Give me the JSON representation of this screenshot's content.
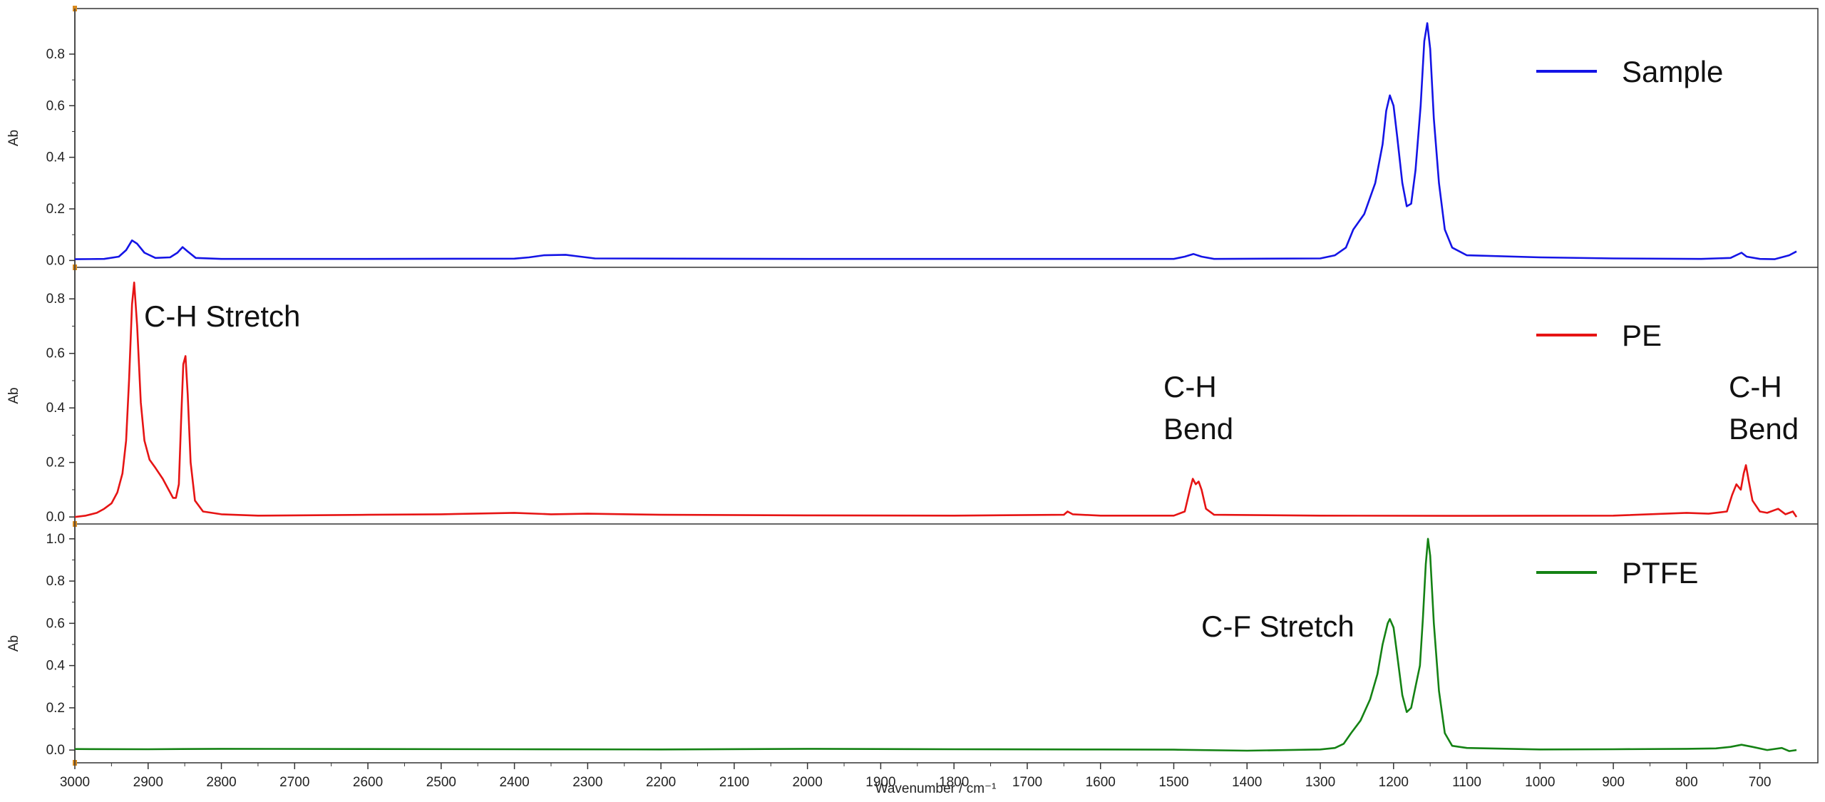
{
  "chart_data": {
    "type": "line",
    "xlabel": "Wavenumber / cm⁻¹",
    "xlim": [
      3000,
      650
    ],
    "x_ticks": [
      3000,
      2900,
      2800,
      2700,
      2600,
      2500,
      2400,
      2300,
      2200,
      2100,
      2000,
      1900,
      1800,
      1700,
      1600,
      1500,
      1400,
      1300,
      1200,
      1100,
      1000,
      900,
      800,
      700
    ],
    "grid": false,
    "legend_position": "right",
    "panels": [
      {
        "id": "sample",
        "ylabel": "Ab",
        "ylim": [
          -0.01,
          0.96
        ],
        "y_ticks": [
          0.0,
          0.2,
          0.4,
          0.6,
          0.8
        ],
        "series": [
          {
            "name": "Sample",
            "color": "#1414e6",
            "points": [
              [
                3000,
                0.005
              ],
              [
                2960,
                0.006
              ],
              [
                2940,
                0.015
              ],
              [
                2930,
                0.04
              ],
              [
                2922,
                0.078
              ],
              [
                2915,
                0.065
              ],
              [
                2905,
                0.03
              ],
              [
                2890,
                0.01
              ],
              [
                2870,
                0.012
              ],
              [
                2860,
                0.03
              ],
              [
                2853,
                0.052
              ],
              [
                2846,
                0.035
              ],
              [
                2835,
                0.01
              ],
              [
                2800,
                0.006
              ],
              [
                2600,
                0.006
              ],
              [
                2400,
                0.007
              ],
              [
                2380,
                0.012
              ],
              [
                2360,
                0.02
              ],
              [
                2330,
                0.022
              ],
              [
                2310,
                0.015
              ],
              [
                2290,
                0.008
              ],
              [
                2000,
                0.006
              ],
              [
                1700,
                0.006
              ],
              [
                1500,
                0.006
              ],
              [
                1485,
                0.015
              ],
              [
                1473,
                0.025
              ],
              [
                1462,
                0.015
              ],
              [
                1445,
                0.006
              ],
              [
                1300,
                0.008
              ],
              [
                1280,
                0.02
              ],
              [
                1265,
                0.05
              ],
              [
                1255,
                0.12
              ],
              [
                1240,
                0.18
              ],
              [
                1225,
                0.3
              ],
              [
                1215,
                0.45
              ],
              [
                1210,
                0.58
              ],
              [
                1205,
                0.64
              ],
              [
                1200,
                0.6
              ],
              [
                1195,
                0.48
              ],
              [
                1188,
                0.3
              ],
              [
                1182,
                0.21
              ],
              [
                1176,
                0.22
              ],
              [
                1170,
                0.35
              ],
              [
                1163,
                0.6
              ],
              [
                1158,
                0.85
              ],
              [
                1154,
                0.92
              ],
              [
                1150,
                0.82
              ],
              [
                1145,
                0.55
              ],
              [
                1138,
                0.3
              ],
              [
                1130,
                0.12
              ],
              [
                1120,
                0.05
              ],
              [
                1100,
                0.02
              ],
              [
                1000,
                0.012
              ],
              [
                900,
                0.008
              ],
              [
                780,
                0.006
              ],
              [
                740,
                0.01
              ],
              [
                725,
                0.03
              ],
              [
                718,
                0.015
              ],
              [
                700,
                0.006
              ],
              [
                680,
                0.005
              ],
              [
                660,
                0.02
              ],
              [
                650,
                0.035
              ]
            ]
          }
        ]
      },
      {
        "id": "pe",
        "ylabel": "Ab",
        "ylim": [
          -0.01,
          0.9
        ],
        "y_ticks": [
          0.0,
          0.2,
          0.4,
          0.6,
          0.8
        ],
        "series": [
          {
            "name": "PE",
            "color": "#e61414",
            "points": [
              [
                3000,
                0.0
              ],
              [
                2985,
                0.005
              ],
              [
                2970,
                0.015
              ],
              [
                2960,
                0.03
              ],
              [
                2950,
                0.05
              ],
              [
                2942,
                0.09
              ],
              [
                2935,
                0.16
              ],
              [
                2930,
                0.28
              ],
              [
                2926,
                0.5
              ],
              [
                2922,
                0.78
              ],
              [
                2919,
                0.86
              ],
              [
                2915,
                0.7
              ],
              [
                2910,
                0.42
              ],
              [
                2905,
                0.28
              ],
              [
                2898,
                0.21
              ],
              [
                2890,
                0.18
              ],
              [
                2880,
                0.14
              ],
              [
                2872,
                0.1
              ],
              [
                2866,
                0.07
              ],
              [
                2862,
                0.07
              ],
              [
                2858,
                0.12
              ],
              [
                2855,
                0.35
              ],
              [
                2852,
                0.56
              ],
              [
                2849,
                0.59
              ],
              [
                2846,
                0.45
              ],
              [
                2842,
                0.2
              ],
              [
                2836,
                0.06
              ],
              [
                2825,
                0.02
              ],
              [
                2800,
                0.01
              ],
              [
                2750,
                0.005
              ],
              [
                2600,
                0.008
              ],
              [
                2500,
                0.01
              ],
              [
                2400,
                0.015
              ],
              [
                2350,
                0.01
              ],
              [
                2300,
                0.012
              ],
              [
                2200,
                0.008
              ],
              [
                2000,
                0.006
              ],
              [
                1800,
                0.005
              ],
              [
                1650,
                0.008
              ],
              [
                1645,
                0.02
              ],
              [
                1638,
                0.01
              ],
              [
                1600,
                0.005
              ],
              [
                1500,
                0.005
              ],
              [
                1485,
                0.02
              ],
              [
                1478,
                0.1
              ],
              [
                1474,
                0.14
              ],
              [
                1470,
                0.12
              ],
              [
                1466,
                0.13
              ],
              [
                1462,
                0.1
              ],
              [
                1456,
                0.03
              ],
              [
                1445,
                0.008
              ],
              [
                1300,
                0.005
              ],
              [
                1100,
                0.004
              ],
              [
                900,
                0.005
              ],
              [
                800,
                0.015
              ],
              [
                770,
                0.012
              ],
              [
                745,
                0.02
              ],
              [
                738,
                0.08
              ],
              [
                732,
                0.12
              ],
              [
                726,
                0.1
              ],
              [
                722,
                0.16
              ],
              [
                719,
                0.19
              ],
              [
                715,
                0.13
              ],
              [
                710,
                0.06
              ],
              [
                700,
                0.02
              ],
              [
                690,
                0.015
              ],
              [
                675,
                0.03
              ],
              [
                665,
                0.01
              ],
              [
                655,
                0.02
              ],
              [
                650,
                0.0
              ]
            ]
          }
        ]
      },
      {
        "id": "ptfe",
        "ylabel": "Ab",
        "ylim": [
          -0.04,
          1.05
        ],
        "y_ticks": [
          0.0,
          0.2,
          0.4,
          0.6,
          0.8,
          1.0
        ],
        "series": [
          {
            "name": "PTFE",
            "color": "#148214",
            "points": [
              [
                3000,
                0.005
              ],
              [
                2900,
                0.004
              ],
              [
                2800,
                0.006
              ],
              [
                2600,
                0.005
              ],
              [
                2400,
                0.004
              ],
              [
                2200,
                0.003
              ],
              [
                2000,
                0.006
              ],
              [
                1800,
                0.004
              ],
              [
                1600,
                0.003
              ],
              [
                1500,
                0.002
              ],
              [
                1400,
                -0.003
              ],
              [
                1300,
                0.003
              ],
              [
                1280,
                0.01
              ],
              [
                1268,
                0.03
              ],
              [
                1258,
                0.08
              ],
              [
                1245,
                0.14
              ],
              [
                1232,
                0.24
              ],
              [
                1222,
                0.36
              ],
              [
                1215,
                0.5
              ],
              [
                1208,
                0.6
              ],
              [
                1205,
                0.62
              ],
              [
                1200,
                0.58
              ],
              [
                1195,
                0.45
              ],
              [
                1188,
                0.26
              ],
              [
                1182,
                0.18
              ],
              [
                1176,
                0.2
              ],
              [
                1170,
                0.3
              ],
              [
                1164,
                0.4
              ],
              [
                1160,
                0.62
              ],
              [
                1156,
                0.88
              ],
              [
                1153,
                1.0
              ],
              [
                1150,
                0.92
              ],
              [
                1145,
                0.6
              ],
              [
                1138,
                0.28
              ],
              [
                1130,
                0.08
              ],
              [
                1120,
                0.02
              ],
              [
                1100,
                0.01
              ],
              [
                1000,
                0.003
              ],
              [
                900,
                0.004
              ],
              [
                800,
                0.006
              ],
              [
                760,
                0.008
              ],
              [
                740,
                0.015
              ],
              [
                725,
                0.025
              ],
              [
                710,
                0.015
              ],
              [
                690,
                0.0
              ],
              [
                670,
                0.01
              ],
              [
                660,
                -0.005
              ],
              [
                650,
                0.0
              ]
            ]
          }
        ]
      }
    ],
    "annotations": [
      {
        "panel": "pe",
        "text": "C-H Stretch"
      },
      {
        "panel": "pe",
        "text": "C-H"
      },
      {
        "panel": "pe",
        "text": "Bend"
      },
      {
        "panel": "pe",
        "text": "C-H"
      },
      {
        "panel": "pe",
        "text": "Bend"
      },
      {
        "panel": "ptfe",
        "text": "C-F Stretch"
      }
    ]
  }
}
